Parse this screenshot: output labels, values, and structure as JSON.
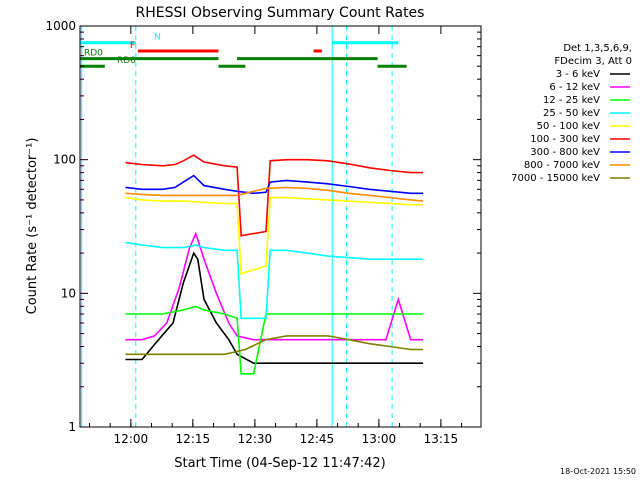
{
  "chart_data": {
    "type": "line",
    "title": "RHESSI Observing Summary Count Rates",
    "xlabel": "Start Time (04-Sep-12 11:47:42)",
    "ylabel": "Count Rate (s⁻¹ detector⁻¹)",
    "x_unit": "minutes after 11:47:42",
    "xlim": [
      0,
      97
    ],
    "ylim": [
      1,
      1000
    ],
    "yscale": "log",
    "grid": false,
    "x_ticks": [
      {
        "value": 12.3,
        "label": "12:00"
      },
      {
        "value": 27.3,
        "label": "12:15"
      },
      {
        "value": 42.3,
        "label": "12:30"
      },
      {
        "value": 57.3,
        "label": "12:45"
      },
      {
        "value": 72.3,
        "label": "13:00"
      },
      {
        "value": 87.3,
        "label": "13:15"
      }
    ],
    "y_ticks": [
      {
        "value": 1,
        "label": "1"
      },
      {
        "value": 10,
        "label": "10"
      },
      {
        "value": 100,
        "label": "100"
      },
      {
        "value": 1000,
        "label": "1000"
      }
    ],
    "legend_position": "right",
    "legend_header": [
      "Det 1,3,5,6,9,",
      "FDecim 3, Att 0"
    ],
    "series": [
      {
        "name": "3 - 6 keV",
        "color": "#000000",
        "x": [
          11,
          15,
          19,
          22.5,
          25,
          27.5,
          28.5,
          30,
          33,
          36,
          38,
          42,
          45,
          50,
          55,
          60,
          65,
          70,
          75,
          80,
          83
        ],
        "y": [
          3.2,
          3.2,
          4.5,
          6,
          12,
          20,
          18,
          9,
          6,
          4.5,
          3.5,
          3,
          3,
          3,
          3,
          3,
          3,
          3,
          3,
          3,
          3
        ]
      },
      {
        "name": "6 - 12 keV",
        "color": "#ff00ff",
        "x": [
          11,
          15,
          18,
          21,
          24,
          26.5,
          28,
          30,
          33,
          36,
          38,
          42,
          45,
          50,
          55,
          60,
          65,
          70,
          74,
          77,
          80,
          83
        ],
        "y": [
          4.5,
          4.5,
          4.8,
          6,
          11,
          22,
          28,
          18,
          10,
          6,
          4.8,
          4.5,
          4.5,
          4.5,
          4.5,
          4.5,
          4.5,
          4.5,
          4.5,
          9,
          4.5,
          4.5
        ]
      },
      {
        "name": "12 - 25 keV",
        "color": "#00ff00",
        "x": [
          11,
          15,
          20,
          25,
          28,
          30,
          35,
          38,
          39,
          42,
          45,
          50,
          55,
          60,
          65,
          70,
          75,
          80,
          83
        ],
        "y": [
          7,
          7,
          7,
          7.5,
          8,
          7.5,
          7,
          6.5,
          2.5,
          2.5,
          7,
          7,
          7,
          7,
          7,
          7,
          7,
          7,
          7
        ]
      },
      {
        "name": "25 - 50 keV",
        "color": "#00ffff",
        "x": [
          11,
          15,
          20,
          25,
          28,
          30,
          35,
          38,
          39,
          42,
          45,
          46,
          50,
          55,
          60,
          65,
          70,
          75,
          80,
          83
        ],
        "y": [
          24,
          23,
          22,
          22,
          23,
          22,
          21,
          21,
          6.5,
          6.5,
          6.5,
          21,
          21,
          20,
          19,
          18.5,
          18,
          18,
          18,
          18
        ]
      },
      {
        "name": "50 - 100 keV",
        "color": "#ffff00",
        "x": [
          11,
          15,
          20,
          25,
          30,
          35,
          38,
          39,
          42,
          45,
          46,
          50,
          55,
          60,
          65,
          70,
          75,
          80,
          83
        ],
        "y": [
          52,
          50,
          49,
          49,
          48,
          47,
          47,
          14,
          15,
          16,
          52,
          52,
          51,
          50,
          49,
          48,
          47,
          46,
          46
        ]
      },
      {
        "name": "100 - 300 keV",
        "color": "#ff0000",
        "x": [
          11,
          15,
          20,
          23,
          25,
          27.5,
          30,
          35,
          38,
          39,
          42,
          45,
          46,
          50,
          55,
          60,
          65,
          70,
          75,
          80,
          83
        ],
        "y": [
          95,
          92,
          90,
          92,
          98,
          108,
          96,
          90,
          88,
          27,
          28,
          29,
          98,
          100,
          100,
          98,
          93,
          87,
          83,
          80,
          80
        ]
      },
      {
        "name": "300 - 800 keV",
        "color": "#0000ff",
        "x": [
          11,
          15,
          20,
          23,
          25,
          27.5,
          30,
          35,
          38,
          42,
          45,
          46,
          50,
          55,
          60,
          65,
          70,
          75,
          80,
          83
        ],
        "y": [
          62,
          60,
          60,
          62,
          68,
          76,
          64,
          60,
          58,
          56,
          57,
          68,
          70,
          68,
          66,
          63,
          60,
          58,
          56,
          56
        ]
      },
      {
        "name": "800 - 7000 keV",
        "color": "#ff8c00",
        "x": [
          11,
          15,
          20,
          25,
          30,
          35,
          38,
          42,
          45,
          50,
          55,
          60,
          65,
          70,
          75,
          80,
          83
        ],
        "y": [
          56,
          55,
          54,
          54,
          54,
          54,
          54,
          58,
          61,
          62,
          61,
          59,
          56,
          54,
          52,
          50,
          49
        ]
      },
      {
        "name": "7000 - 15000 keV",
        "color": "#808000",
        "x": [
          11,
          15,
          20,
          25,
          30,
          35,
          40,
          45,
          50,
          55,
          60,
          65,
          70,
          75,
          80,
          83
        ],
        "y": [
          3.5,
          3.5,
          3.5,
          3.5,
          3.5,
          3.5,
          3.8,
          4.5,
          4.8,
          4.8,
          4.8,
          4.5,
          4.2,
          4,
          3.8,
          3.8
        ]
      }
    ],
    "state_bars": [
      {
        "label": "N",
        "color": "#00ffff",
        "y": 750,
        "segments": [
          [
            0,
            13.5
          ],
          [
            61,
            77
          ]
        ]
      },
      {
        "label": "F",
        "color": "#ff0000",
        "y": 650,
        "segments": [
          [
            14,
            33.5
          ],
          [
            56.5,
            58.5
          ]
        ]
      },
      {
        "label": "RD0",
        "color": "#008000",
        "y": 570,
        "segments": [
          [
            0,
            33.5
          ],
          [
            38,
            72
          ]
        ]
      },
      {
        "label": "RD6",
        "color": "#008000",
        "y": 500,
        "segments": [
          [
            0,
            6
          ],
          [
            33.5,
            40
          ],
          [
            72,
            79
          ]
        ]
      }
    ],
    "vertical_lines": [
      {
        "x": 13.5,
        "color": "#00ffff",
        "style": "dashed"
      },
      {
        "x": 61,
        "color": "#00ffff",
        "style": "solid"
      },
      {
        "x": 64.5,
        "color": "#00ffff",
        "style": "dashed"
      },
      {
        "x": 75.5,
        "color": "#00ffff",
        "style": "dashed"
      },
      {
        "x": 0.4,
        "color": "#00ffff",
        "style": "solid"
      }
    ]
  },
  "footer": {
    "timestamp": "18-Oct-2021 15:50"
  }
}
